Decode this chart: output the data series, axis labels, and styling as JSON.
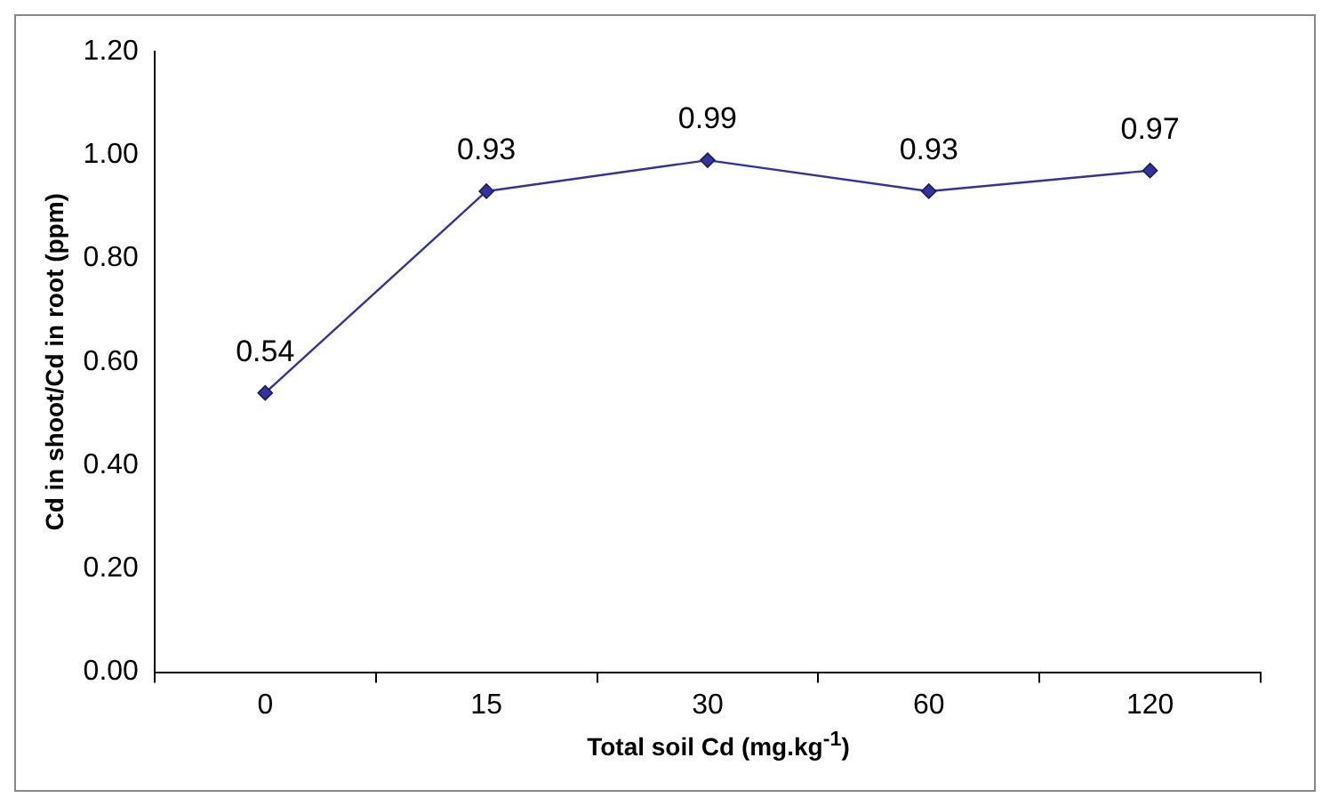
{
  "chart_data": {
    "type": "line",
    "xlabel": "Total soil Cd (mg.kg$^{-1}$)",
    "ylabel": "Cd in shoot/Cd in root (ppm)",
    "categories": [
      "0",
      "15",
      "30",
      "60",
      "120"
    ],
    "series": [
      {
        "color": "#333399",
        "values": [
          0.54,
          0.93,
          0.99,
          0.93,
          0.97
        ]
      }
    ],
    "ylim": [
      0,
      1.2
    ],
    "yticks": [
      {
        "value": 0,
        "label": "0.00"
      },
      {
        "value": 0.2,
        "label": "0.20"
      },
      {
        "value": 0.4,
        "label": "0.40"
      },
      {
        "value": 0.6,
        "label": "0.60"
      },
      {
        "value": 0.8,
        "label": "0.80"
      },
      {
        "value": 1,
        "label": "1.00"
      },
      {
        "value": 1.2,
        "label": "1.20"
      }
    ],
    "marker": "diamond",
    "line_style": "solid",
    "data_labels": true,
    "legend": false
  }
}
